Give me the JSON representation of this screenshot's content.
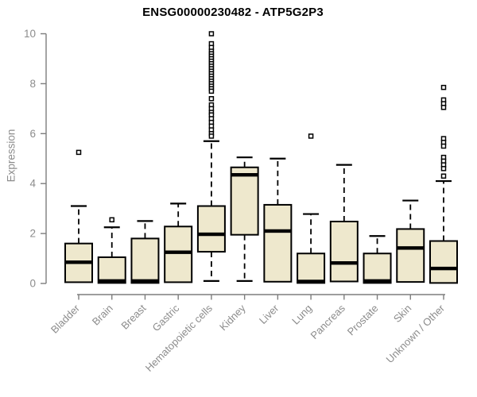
{
  "chart_data": {
    "type": "boxplot",
    "title": "ENSG00000230482 - ATP5G2P3",
    "xlabel": "",
    "ylabel": "Expression",
    "ylim": [
      0,
      10
    ],
    "yticks": [
      0,
      2,
      4,
      6,
      8,
      10
    ],
    "grid": false,
    "legend": "none",
    "colors": {
      "box_fill": "#eee8cd",
      "box_stroke": "#000000",
      "median": "#000000",
      "whisker": "#000000",
      "outlier_stroke": "#000000",
      "axis": "#7d7d7d",
      "tick_label": "#8c8c8c",
      "title": "#000000",
      "background": "#ffffff"
    },
    "categories": [
      "Bladder",
      "Brain",
      "Breast",
      "Gastric",
      "Hematopoietic cells",
      "Kidney",
      "Liver",
      "Lung",
      "Pancreas",
      "Prostate",
      "Skin",
      "Unknown / Other"
    ],
    "series": [
      {
        "name": "Bladder",
        "q1": 0.05,
        "median": 0.85,
        "q3": 1.6,
        "whisker_low": null,
        "whisker_high": 3.1,
        "outliers": [
          5.25
        ]
      },
      {
        "name": "Brain",
        "q1": 0.02,
        "median": 0.1,
        "q3": 1.05,
        "whisker_low": null,
        "whisker_high": 2.25,
        "outliers": [
          2.55
        ]
      },
      {
        "name": "Breast",
        "q1": 0.02,
        "median": 0.1,
        "q3": 1.8,
        "whisker_low": null,
        "whisker_high": 2.5,
        "outliers": []
      },
      {
        "name": "Gastric",
        "q1": 0.05,
        "median": 1.25,
        "q3": 2.28,
        "whisker_low": null,
        "whisker_high": 3.2,
        "outliers": []
      },
      {
        "name": "Hematopoietic cells",
        "q1": 1.27,
        "median": 1.97,
        "q3": 3.1,
        "whisker_low": 0.1,
        "whisker_high": 5.7,
        "outliers": [
          10.0,
          9.6,
          9.45,
          9.3,
          9.2,
          9.1,
          9.0,
          8.9,
          8.8,
          8.7,
          8.6,
          8.5,
          8.4,
          8.3,
          8.2,
          8.1,
          8.0,
          7.9,
          7.8,
          7.7,
          7.4,
          7.15,
          7.0,
          6.85,
          6.75,
          6.6,
          6.45,
          6.3,
          6.15,
          6.0,
          5.9
        ]
      },
      {
        "name": "Kidney",
        "q1": 1.95,
        "median": 4.35,
        "q3": 4.65,
        "whisker_low": 0.1,
        "whisker_high": 5.05,
        "outliers": []
      },
      {
        "name": "Liver",
        "q1": 0.07,
        "median": 2.1,
        "q3": 3.15,
        "whisker_low": null,
        "whisker_high": 5.0,
        "outliers": []
      },
      {
        "name": "Lung",
        "q1": 0.02,
        "median": 0.08,
        "q3": 1.2,
        "whisker_low": null,
        "whisker_high": 2.78,
        "outliers": [
          5.9
        ]
      },
      {
        "name": "Pancreas",
        "q1": 0.08,
        "median": 0.82,
        "q3": 2.48,
        "whisker_low": null,
        "whisker_high": 4.75,
        "outliers": []
      },
      {
        "name": "Prostate",
        "q1": 0.02,
        "median": 0.1,
        "q3": 1.2,
        "whisker_low": null,
        "whisker_high": 1.9,
        "outliers": []
      },
      {
        "name": "Skin",
        "q1": 0.06,
        "median": 1.42,
        "q3": 2.18,
        "whisker_low": null,
        "whisker_high": 3.32,
        "outliers": []
      },
      {
        "name": "Unknown / Other",
        "q1": 0.02,
        "median": 0.6,
        "q3": 1.7,
        "whisker_low": null,
        "whisker_high": 4.1,
        "outliers": [
          7.85,
          7.35,
          7.2,
          7.05,
          5.8,
          5.65,
          5.5,
          5.05,
          4.9,
          4.75,
          4.6,
          4.3
        ]
      }
    ]
  }
}
